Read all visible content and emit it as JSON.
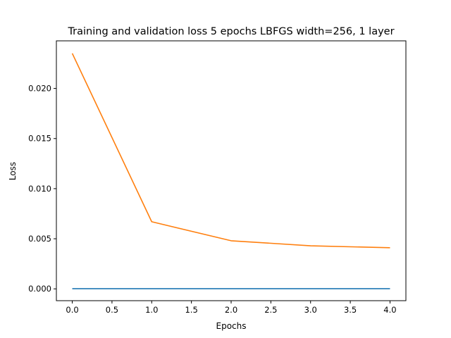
{
  "chart_data": {
    "type": "line",
    "title": "Training and validation loss 5 epochs LBFGS width=256, 1 layer",
    "xlabel": "Epochs",
    "ylabel": "Loss",
    "xlim": [
      -0.2,
      4.2
    ],
    "ylim": [
      -0.00118,
      0.02475
    ],
    "xticks": [
      0.0,
      0.5,
      1.0,
      1.5,
      2.0,
      2.5,
      3.0,
      3.5,
      4.0
    ],
    "xtick_labels": [
      "0.0",
      "0.5",
      "1.0",
      "1.5",
      "2.0",
      "2.5",
      "3.0",
      "3.5",
      "4.0"
    ],
    "yticks": [
      0.0,
      0.005,
      0.01,
      0.015,
      0.02
    ],
    "ytick_labels": [
      "0.000",
      "0.005",
      "0.010",
      "0.015",
      "0.020"
    ],
    "grid": false,
    "legend": "none",
    "x": [
      0,
      1,
      2,
      3,
      4
    ],
    "series": [
      {
        "values": [
          2e-05,
          2e-05,
          2e-05,
          2e-05,
          2e-05
        ],
        "color": "#1f77b4"
      },
      {
        "values": [
          0.0235,
          0.0067,
          0.0048,
          0.0043,
          0.0041
        ],
        "color": "#ff7f0e"
      }
    ]
  }
}
